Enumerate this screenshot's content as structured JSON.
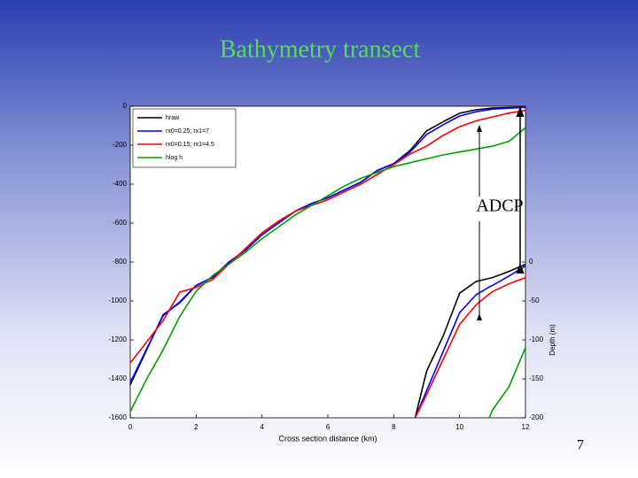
{
  "slide": {
    "title": "Bathymetry transect",
    "page_number": "7"
  },
  "chart_data": [
    {
      "type": "line",
      "xlabel": "Cross section distance (km)",
      "annotation": "ADCP",
      "x": [
        0,
        0.5,
        1,
        1.5,
        2,
        2.5,
        3,
        3.5,
        4,
        4.5,
        5,
        5.5,
        6,
        6.5,
        7,
        7.5,
        8,
        8.5,
        9,
        9.5,
        10,
        10.5,
        11,
        11.5,
        12
      ],
      "xlim": [
        0,
        12
      ],
      "xticks": [
        0,
        2,
        4,
        6,
        8,
        10,
        12
      ],
      "ylim": [
        -1600,
        0
      ],
      "yticks": [
        0,
        -200,
        -400,
        -600,
        -800,
        -1000,
        -1200,
        -1400,
        -1600
      ],
      "legend": "upper left",
      "series": [
        {
          "name": "hraw",
          "color": "#000000",
          "values": [
            -1430,
            -1250,
            -1070,
            -1010,
            -920,
            -880,
            -800,
            -740,
            -660,
            -600,
            -540,
            -500,
            -470,
            -430,
            -390,
            -330,
            -295,
            -227,
            -127,
            -80,
            -36,
            -18,
            -9,
            -7,
            -5
          ]
        },
        {
          "name": "rx0=0.25; rx1=7",
          "color": "#0000ff",
          "values": [
            -1420,
            -1245,
            -1075,
            -1005,
            -920,
            -878,
            -800,
            -738,
            -660,
            -600,
            -540,
            -500,
            -470,
            -430,
            -390,
            -330,
            -295,
            -235,
            -145,
            -95,
            -50,
            -28,
            -15,
            -10,
            -6
          ]
        },
        {
          "name": "rx0=0.15; rx1=4.5",
          "color": "#ff0000",
          "values": [
            -1318,
            -1210,
            -1100,
            -955,
            -930,
            -890,
            -810,
            -730,
            -650,
            -590,
            -540,
            -510,
            -480,
            -440,
            -400,
            -350,
            -300,
            -245,
            -205,
            -150,
            -105,
            -75,
            -55,
            -35,
            -22
          ]
        },
        {
          "name": "hlog h",
          "color": "#00a000",
          "values": [
            -1568,
            -1400,
            -1250,
            -1080,
            -950,
            -870,
            -810,
            -750,
            -680,
            -620,
            -560,
            -510,
            -460,
            -410,
            -370,
            -340,
            -310,
            -290,
            -270,
            -250,
            -235,
            -220,
            -205,
            -180,
            -110
          ]
        }
      ]
    },
    {
      "type": "line",
      "ylabel": "Depth (m)",
      "x": [
        8.65,
        9,
        9.5,
        10,
        10.5,
        10.9,
        11,
        11.5,
        12
      ],
      "xlim": [
        0,
        12
      ],
      "ylim": [
        -200,
        0
      ],
      "yticks": [
        0,
        -50,
        -100,
        -150,
        -200
      ],
      "series": [
        {
          "name": "hraw",
          "color": "#000000",
          "values": [
            -200,
            -140,
            -95,
            -40,
            -25,
            -21,
            -20,
            -12,
            -3
          ]
        },
        {
          "name": "rx0=0.25; rx1=7",
          "color": "#0000ff",
          "values": [
            -200,
            -165,
            -115,
            -65,
            -42,
            -32,
            -30,
            -18,
            -5
          ]
        },
        {
          "name": "rx0=0.15; rx1=4.5",
          "color": "#ff0000",
          "values": [
            -200,
            -170,
            -125,
            -80,
            -55,
            -41,
            -38,
            -28,
            -20
          ]
        },
        {
          "name": "hlog h",
          "color": "#00a000",
          "values": [
            null,
            null,
            null,
            null,
            null,
            -200,
            -190,
            -160,
            -110
          ]
        }
      ]
    }
  ]
}
